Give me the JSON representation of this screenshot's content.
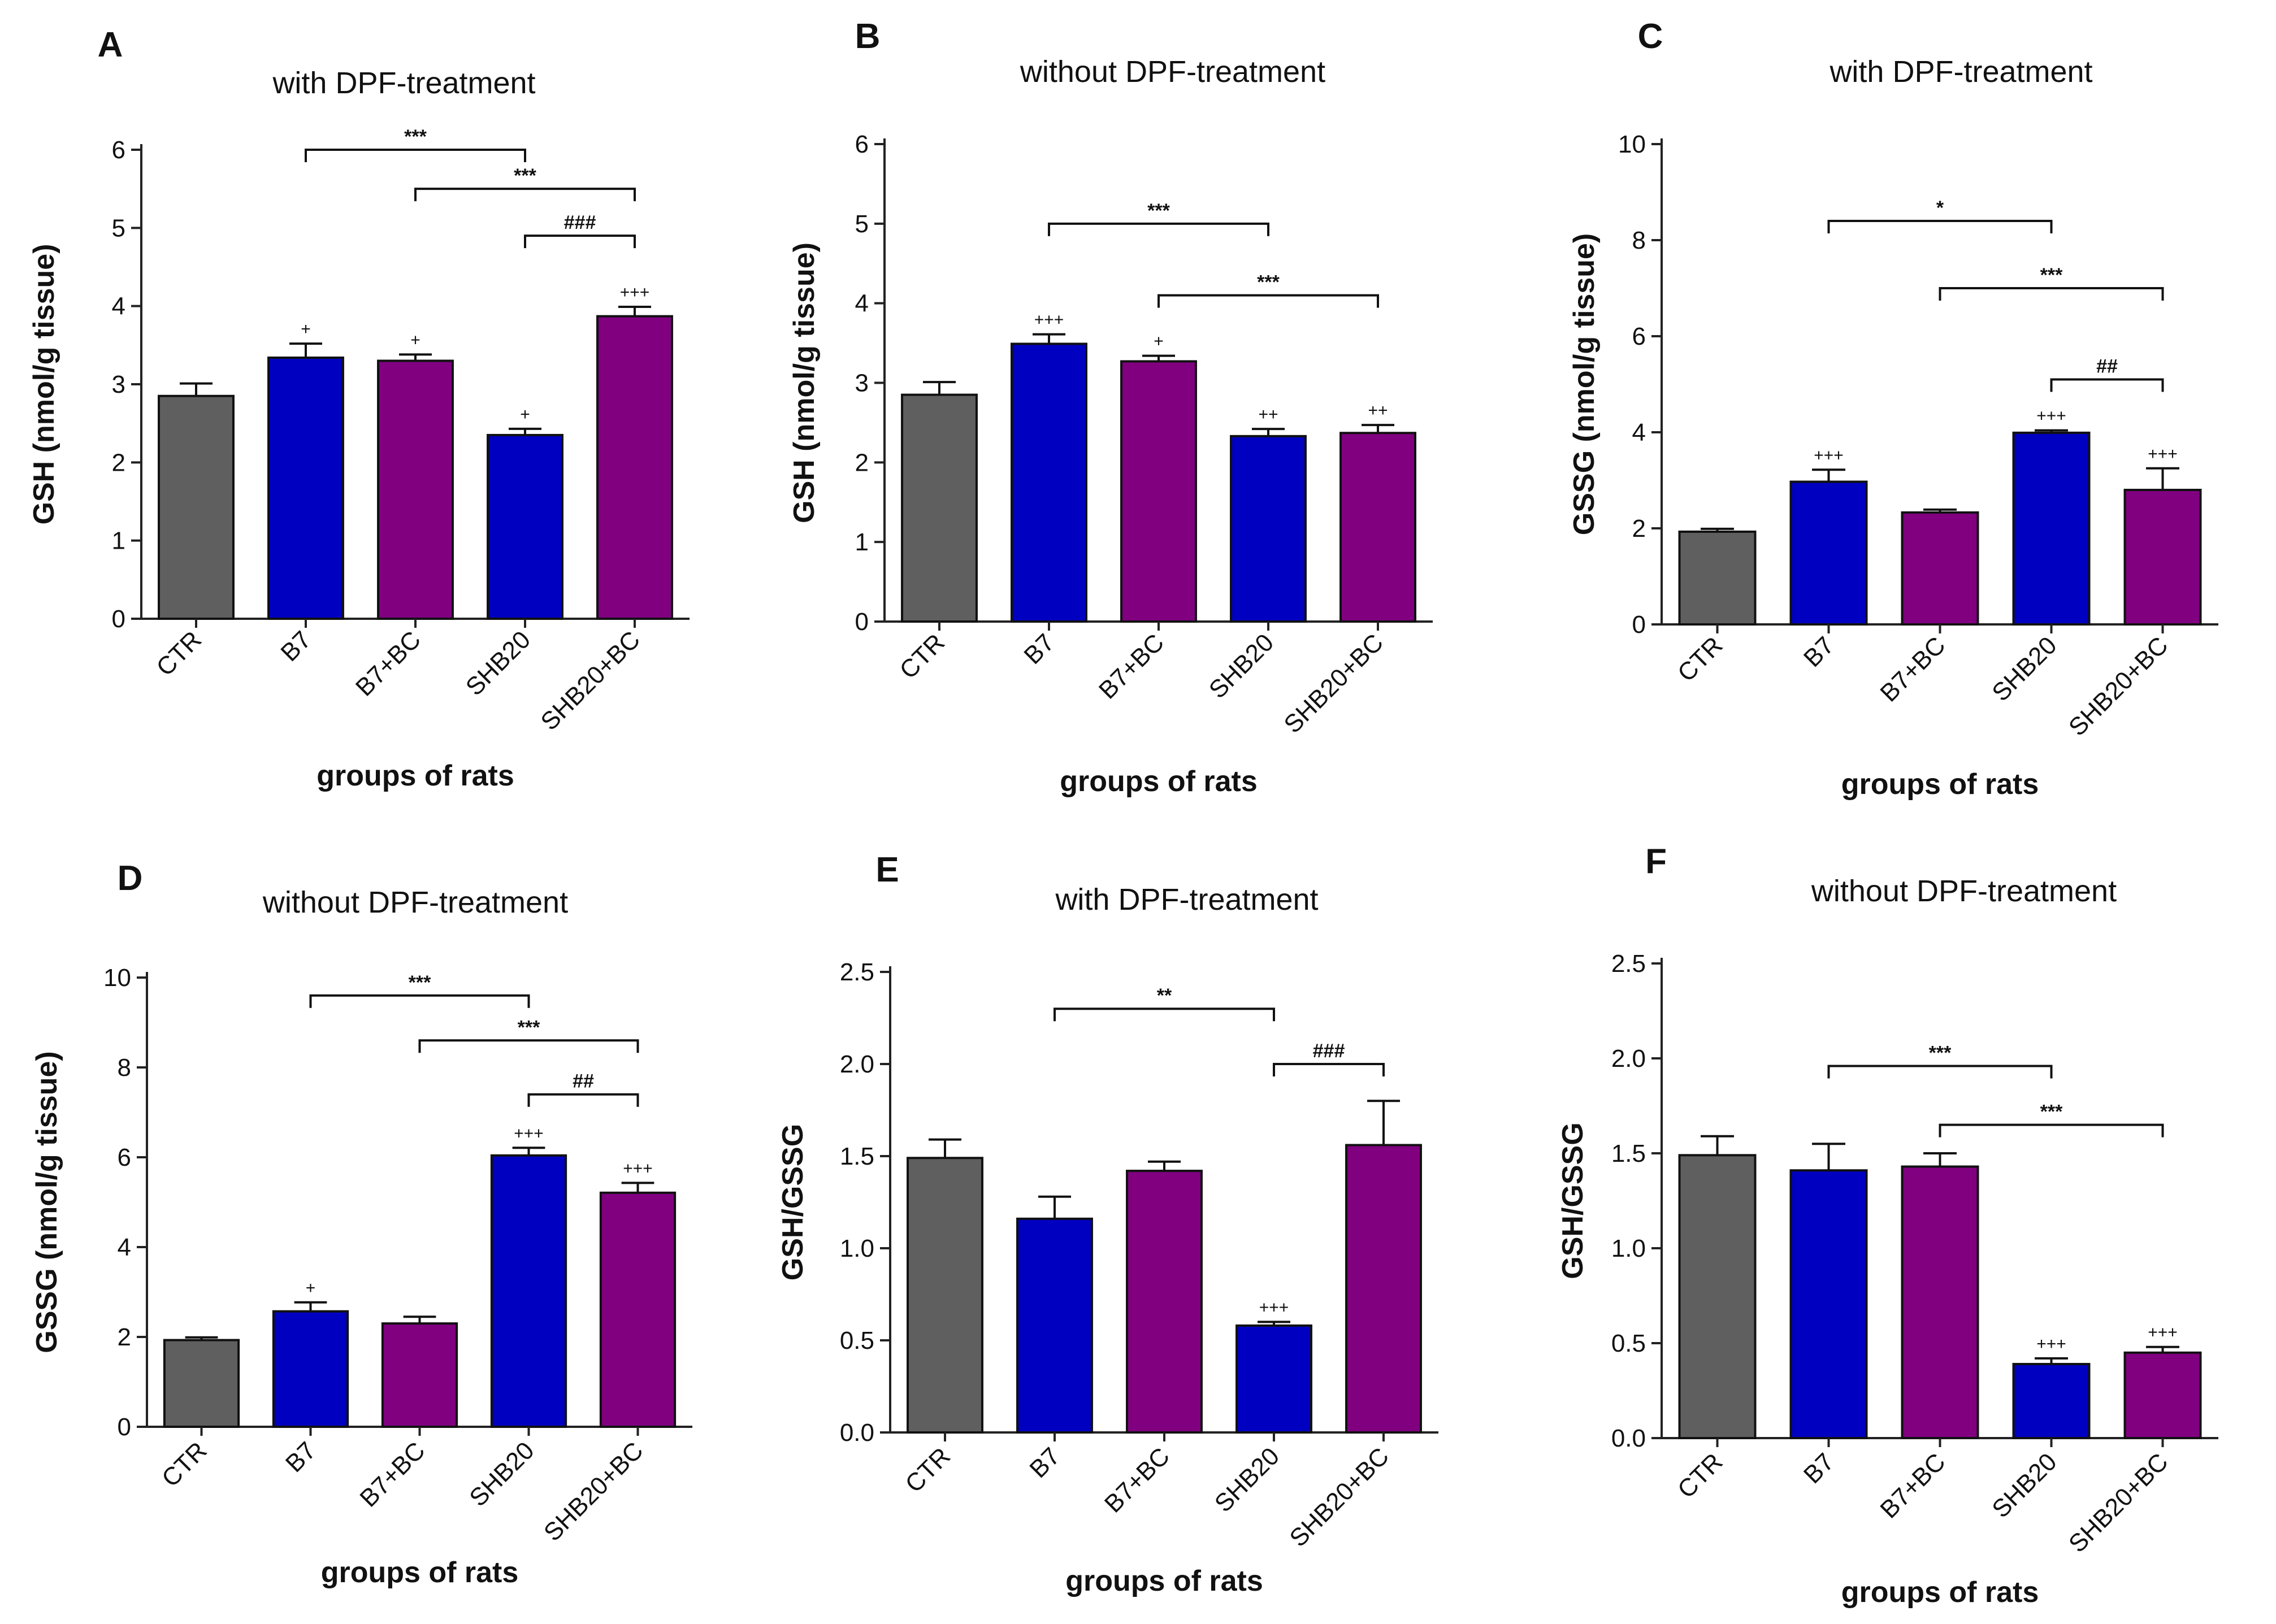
{
  "colors": {
    "CTR": "#5f5f5f",
    "B7": "#0000c0",
    "B7+BC": "#800080",
    "SHB20": "#0000c0",
    "SHB20+BC": "#800080"
  },
  "chart_data": [
    {
      "letter": "A",
      "type": "bar",
      "title": "with DPF-treatment",
      "ylabel": "GSH (nmol/g tissue)",
      "xlabel": "groups of rats",
      "ylim": [
        0,
        6
      ],
      "yticks": [
        "0",
        "1",
        "2",
        "3",
        "4",
        "5",
        "6"
      ],
      "ytick_values": [
        0,
        1,
        2,
        3,
        4,
        5,
        6
      ],
      "categories": [
        "CTR",
        "B7",
        "B7+BC",
        "SHB20",
        "SHB20+BC"
      ],
      "values": [
        2.85,
        3.34,
        3.3,
        2.35,
        3.87
      ],
      "errors": [
        0.16,
        0.18,
        0.08,
        0.08,
        0.12
      ],
      "marks": [
        "",
        "+",
        "+",
        "+",
        "+++"
      ],
      "brackets": [
        {
          "from": 1,
          "to": 3,
          "y": 6.0,
          "label": "***"
        },
        {
          "from": 2,
          "to": 4,
          "y": 5.5,
          "label": "***"
        },
        {
          "from": 3,
          "to": 4,
          "y": 4.9,
          "label": "###"
        }
      ]
    },
    {
      "letter": "B",
      "type": "bar",
      "title": "without DPF-treatment",
      "ylabel": "GSH (nmol/g tissue)",
      "xlabel": "groups of rats",
      "ylim": [
        0,
        6
      ],
      "yticks": [
        "0",
        "1",
        "2",
        "3",
        "4",
        "5",
        "6"
      ],
      "ytick_values": [
        0,
        1,
        2,
        3,
        4,
        5,
        6
      ],
      "categories": [
        "CTR",
        "B7",
        "B7+BC",
        "SHB20",
        "SHB20+BC"
      ],
      "values": [
        2.85,
        3.49,
        3.27,
        2.33,
        2.37
      ],
      "errors": [
        0.16,
        0.12,
        0.07,
        0.09,
        0.1
      ],
      "marks": [
        "",
        "+++",
        "+",
        "++",
        "++"
      ],
      "brackets": [
        {
          "from": 1,
          "to": 3,
          "y": 5.0,
          "label": "***"
        },
        {
          "from": 2,
          "to": 4,
          "y": 4.1,
          "label": "***"
        }
      ]
    },
    {
      "letter": "C",
      "type": "bar",
      "title": "with DPF-treatment",
      "ylabel": "GSSG (nmol/g tissue)",
      "xlabel": "groups of rats",
      "ylim": [
        0,
        10
      ],
      "yticks": [
        "0",
        "2",
        "4",
        "6",
        "8",
        "10"
      ],
      "ytick_values": [
        0,
        2,
        4,
        6,
        8,
        10
      ],
      "categories": [
        "CTR",
        "B7",
        "B7+BC",
        "SHB20",
        "SHB20+BC"
      ],
      "values": [
        1.93,
        2.97,
        2.33,
        3.99,
        2.8
      ],
      "errors": [
        0.06,
        0.25,
        0.06,
        0.05,
        0.45
      ],
      "marks": [
        "",
        "+++",
        "",
        "+++",
        "+++"
      ],
      "brackets": [
        {
          "from": 1,
          "to": 3,
          "y": 8.4,
          "label": "*"
        },
        {
          "from": 2,
          "to": 4,
          "y": 7.0,
          "label": "***"
        },
        {
          "from": 3,
          "to": 4,
          "y": 5.1,
          "label": "##"
        }
      ]
    },
    {
      "letter": "D",
      "type": "bar",
      "title": "without DPF-treatment",
      "ylabel": "GSSG (nmol/g tissue)",
      "xlabel": "groups of rats",
      "ylim": [
        0,
        10
      ],
      "yticks": [
        "0",
        "2",
        "4",
        "6",
        "8",
        "10"
      ],
      "ytick_values": [
        0,
        2,
        4,
        6,
        8,
        10
      ],
      "categories": [
        "CTR",
        "B7",
        "B7+BC",
        "SHB20",
        "SHB20+BC"
      ],
      "values": [
        1.93,
        2.57,
        2.3,
        6.04,
        5.21
      ],
      "errors": [
        0.06,
        0.2,
        0.15,
        0.17,
        0.22
      ],
      "marks": [
        "",
        "+",
        "",
        "+++",
        "+++"
      ],
      "brackets": [
        {
          "from": 1,
          "to": 3,
          "y": 9.6,
          "label": "***"
        },
        {
          "from": 2,
          "to": 4,
          "y": 8.6,
          "label": "***"
        },
        {
          "from": 3,
          "to": 4,
          "y": 7.4,
          "label": "##"
        }
      ]
    },
    {
      "letter": "E",
      "type": "bar",
      "title": "with DPF-treatment",
      "ylabel": "GSH/GSSG",
      "xlabel": "groups of rats",
      "ylim": [
        0,
        2.5
      ],
      "yticks": [
        "0.0",
        "0.5",
        "1.0",
        "1.5",
        "2.0",
        "2.5"
      ],
      "ytick_values": [
        0,
        0.5,
        1.0,
        1.5,
        2.0,
        2.5
      ],
      "categories": [
        "CTR",
        "B7",
        "B7+BC",
        "SHB20",
        "SHB20+BC"
      ],
      "values": [
        1.49,
        1.16,
        1.42,
        0.58,
        1.56
      ],
      "errors": [
        0.1,
        0.12,
        0.05,
        0.02,
        0.24
      ],
      "marks": [
        "",
        "",
        "",
        "+++",
        ""
      ],
      "brackets": [
        {
          "from": 1,
          "to": 3,
          "y": 2.3,
          "label": "**"
        },
        {
          "from": 3,
          "to": 4,
          "y": 2.0,
          "label": "###"
        }
      ]
    },
    {
      "letter": "F",
      "type": "bar",
      "title": "without DPF-treatment",
      "ylabel": "GSH/GSSG",
      "xlabel": "groups of rats",
      "ylim": [
        0,
        2.5
      ],
      "yticks": [
        "0.0",
        "0.5",
        "1.0",
        "1.5",
        "2.0",
        "2.5"
      ],
      "ytick_values": [
        0,
        0.5,
        1.0,
        1.5,
        2.0,
        2.5
      ],
      "categories": [
        "CTR",
        "B7",
        "B7+BC",
        "SHB20",
        "SHB20+BC"
      ],
      "values": [
        1.49,
        1.41,
        1.43,
        0.39,
        0.45
      ],
      "errors": [
        0.1,
        0.14,
        0.07,
        0.03,
        0.03
      ],
      "marks": [
        "",
        "",
        "",
        "+++",
        "+++"
      ],
      "brackets": [
        {
          "from": 1,
          "to": 3,
          "y": 1.96,
          "label": "***"
        },
        {
          "from": 2,
          "to": 4,
          "y": 1.65,
          "label": "***"
        }
      ]
    }
  ]
}
